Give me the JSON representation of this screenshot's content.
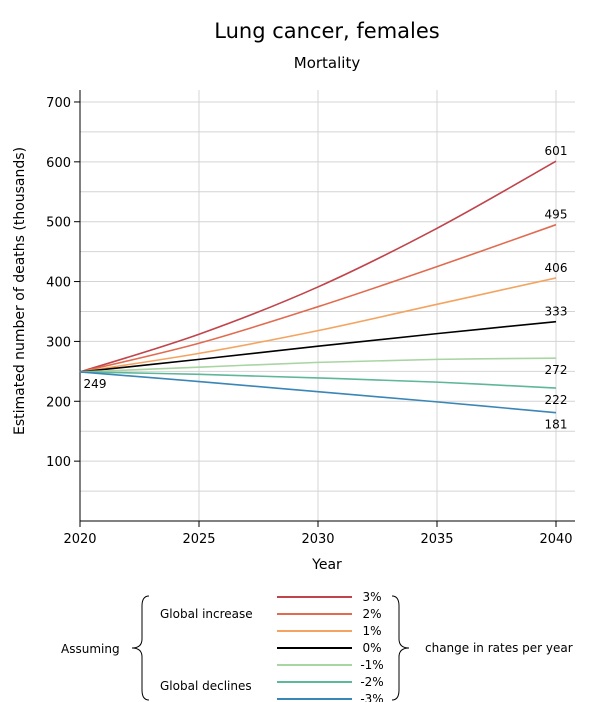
{
  "chart_data": {
    "type": "line",
    "title": "Lung cancer, females",
    "subtitle": "Mortality",
    "xlabel": "Year",
    "ylabel": "Estimated number of deaths (thousands)",
    "xlim": [
      2020,
      2041
    ],
    "ylim": [
      0,
      720
    ],
    "x_ticks": [
      2020,
      2025,
      2030,
      2035,
      2040
    ],
    "y_ticks": [
      100,
      200,
      300,
      400,
      500,
      600,
      700
    ],
    "grid": true,
    "start_label": "249",
    "x": [
      2020,
      2025,
      2030,
      2035,
      2040
    ],
    "series": [
      {
        "name": "3%",
        "color": "#c0444b",
        "values": [
          249,
          312,
          391,
          489,
          601
        ],
        "end_label": "601"
      },
      {
        "name": "2%",
        "color": "#e16b4f",
        "values": [
          249,
          297,
          358,
          425,
          495
        ],
        "end_label": "495"
      },
      {
        "name": "1%",
        "color": "#f4a460",
        "values": [
          249,
          280,
          318,
          362,
          406
        ],
        "end_label": "406"
      },
      {
        "name": "0%",
        "color": "#000000",
        "values": [
          249,
          270,
          292,
          313,
          333
        ],
        "end_label": "333"
      },
      {
        "name": "-1%",
        "color": "#a8d5a2",
        "values": [
          249,
          257,
          265,
          270,
          272
        ],
        "end_label": "272"
      },
      {
        "name": "-2%",
        "color": "#5fb79a",
        "values": [
          249,
          245,
          239,
          232,
          222
        ],
        "end_label": "222"
      },
      {
        "name": "-3%",
        "color": "#3a86b7",
        "values": [
          249,
          233,
          216,
          199,
          181
        ],
        "end_label": "181"
      }
    ]
  },
  "legend": {
    "assuming": "Assuming",
    "global_increase": "Global increase",
    "global_declines": "Global declines",
    "change_text": "change in rates per year"
  }
}
